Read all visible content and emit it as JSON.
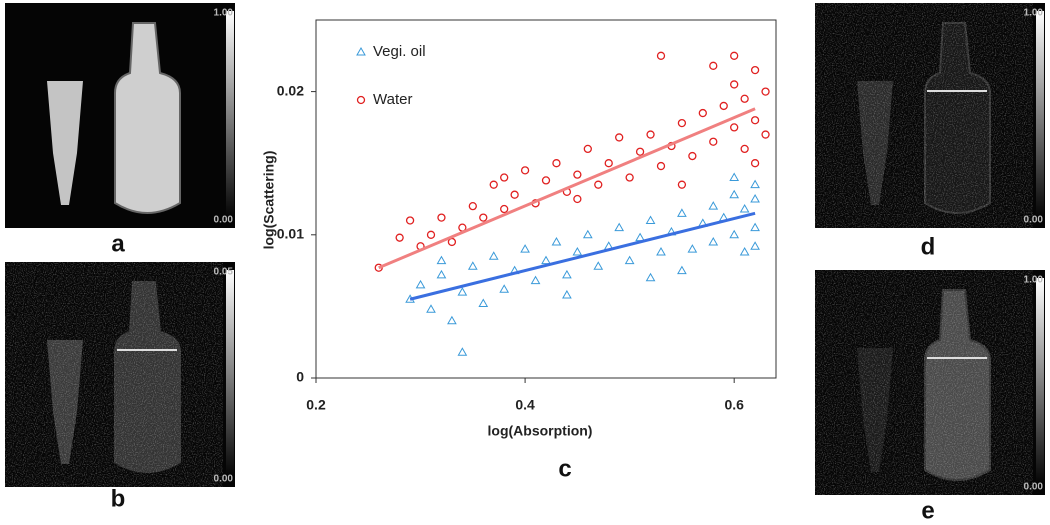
{
  "panels": [
    {
      "label": "a",
      "scale_max": "1.00",
      "scale_min": "0.00"
    },
    {
      "label": "b",
      "scale_max": "0.05",
      "scale_min": "0.00"
    },
    {
      "label": "d",
      "scale_max": "1.00",
      "scale_min": "0.00"
    },
    {
      "label": "e",
      "scale_max": "1.00",
      "scale_min": "0.00"
    }
  ],
  "chart_data": {
    "type": "scatter",
    "label": "c",
    "x_label": "log(Absorption)",
    "y_label": "log(Scattering)",
    "xlim": [
      0.2,
      0.64
    ],
    "xticks": [
      0.2,
      0.4,
      0.6
    ],
    "ylim": [
      0,
      0.025
    ],
    "yticks": [
      0,
      0.01,
      0.02
    ],
    "series": [
      {
        "name": "Vegi. oil",
        "color": "#3a9ad9",
        "marker": "triangle",
        "x": [
          0.29,
          0.3,
          0.31,
          0.32,
          0.33,
          0.34,
          0.34,
          0.35,
          0.36,
          0.37,
          0.38,
          0.39,
          0.4,
          0.41,
          0.42,
          0.43,
          0.44,
          0.45,
          0.46,
          0.47,
          0.48,
          0.49,
          0.5,
          0.51,
          0.52,
          0.53,
          0.54,
          0.55,
          0.56,
          0.57,
          0.58,
          0.58,
          0.59,
          0.6,
          0.6,
          0.61,
          0.61,
          0.62,
          0.62,
          0.62,
          0.62,
          0.32,
          0.44,
          0.55,
          0.6,
          0.52
        ],
        "values": [
          0.0055,
          0.0065,
          0.0048,
          0.0072,
          0.004,
          0.0018,
          0.006,
          0.0078,
          0.0052,
          0.0085,
          0.0062,
          0.0075,
          0.009,
          0.0068,
          0.0082,
          0.0095,
          0.0072,
          0.0088,
          0.01,
          0.0078,
          0.0092,
          0.0105,
          0.0082,
          0.0098,
          0.011,
          0.0088,
          0.0102,
          0.0115,
          0.009,
          0.0108,
          0.012,
          0.0095,
          0.0112,
          0.0128,
          0.01,
          0.0118,
          0.0088,
          0.0135,
          0.0105,
          0.0092,
          0.0125,
          0.0082,
          0.0058,
          0.0075,
          0.014,
          0.007
        ],
        "fit": {
          "color": "#3a6fe0",
          "x": [
            0.29,
            0.62
          ],
          "values": [
            0.0055,
            0.0115
          ]
        }
      },
      {
        "name": "Water",
        "color": "#e02020",
        "marker": "circle",
        "x": [
          0.26,
          0.28,
          0.29,
          0.3,
          0.31,
          0.32,
          0.33,
          0.34,
          0.35,
          0.36,
          0.37,
          0.38,
          0.39,
          0.4,
          0.41,
          0.42,
          0.43,
          0.44,
          0.45,
          0.46,
          0.47,
          0.48,
          0.49,
          0.5,
          0.51,
          0.52,
          0.53,
          0.54,
          0.55,
          0.56,
          0.57,
          0.58,
          0.59,
          0.6,
          0.6,
          0.61,
          0.61,
          0.62,
          0.62,
          0.63,
          0.63,
          0.53,
          0.58,
          0.45,
          0.38,
          0.55,
          0.62,
          0.6
        ],
        "values": [
          0.0077,
          0.0098,
          0.011,
          0.0092,
          0.01,
          0.0112,
          0.0095,
          0.0105,
          0.012,
          0.0112,
          0.0135,
          0.0118,
          0.0128,
          0.0145,
          0.0122,
          0.0138,
          0.015,
          0.013,
          0.0142,
          0.016,
          0.0135,
          0.015,
          0.0168,
          0.014,
          0.0158,
          0.017,
          0.0148,
          0.0162,
          0.0178,
          0.0155,
          0.0185,
          0.0165,
          0.019,
          0.0175,
          0.0205,
          0.016,
          0.0195,
          0.0215,
          0.018,
          0.02,
          0.017,
          0.0225,
          0.0218,
          0.0125,
          0.014,
          0.0135,
          0.015,
          0.0225
        ],
        "fit": {
          "color": "#f08080",
          "x": [
            0.26,
            0.62
          ],
          "values": [
            0.0077,
            0.0188
          ]
        }
      }
    ]
  }
}
